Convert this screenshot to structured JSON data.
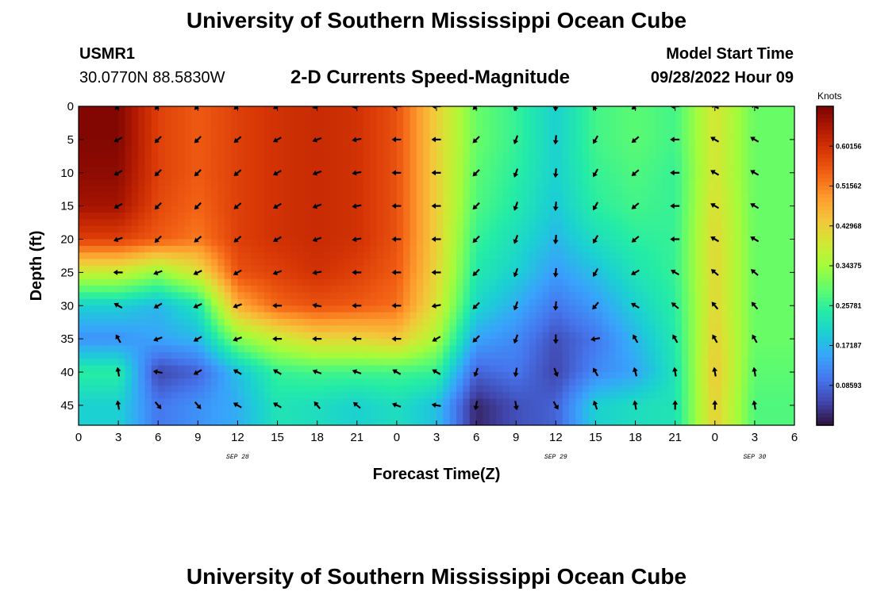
{
  "header": {
    "title": "University of Southern Mississippi Ocean Cube",
    "station_id": "USMR1",
    "coordinates": "30.0770N  88.5830W",
    "subtitle": "2-D Currents Speed-Magnitude",
    "model_label": "Model Start Time",
    "model_time": "09/28/2022 Hour 09"
  },
  "footer": {
    "title": "University of Southern Mississippi Ocean Cube"
  },
  "colors": {
    "colormap": [
      "#30123b",
      "#4145ab",
      "#4675ed",
      "#39a2fc",
      "#1bcfd4",
      "#24eca6",
      "#61fc6c",
      "#a4fc3b",
      "#d1e834",
      "#f3c63a",
      "#fe9b2d",
      "#f36315",
      "#d93806",
      "#b11901",
      "#7a0403"
    ],
    "arrow": "#000000"
  },
  "chart_data": {
    "type": "heatmap",
    "title": "2-D Currents Speed-Magnitude",
    "xlabel": "Forecast Time(Z)",
    "ylabel": "Depth (ft)",
    "colorbar_label": "Knots",
    "colorbar_ticks": [
      "0.60156",
      "0.51562",
      "0.42968",
      "0.34375",
      "0.25781",
      "0.17187",
      "0.08593"
    ],
    "colorbar_values": [
      0.60156,
      0.51562,
      0.42968,
      0.34375,
      0.25781,
      0.17187,
      0.08593
    ],
    "value_range": [
      0.0,
      0.6875
    ],
    "x_tick_labels": [
      "0",
      "3",
      "6",
      "9",
      "12",
      "15",
      "18",
      "21",
      "0",
      "3",
      "6",
      "9",
      "12",
      "15",
      "18",
      "21",
      "0",
      "3",
      "6"
    ],
    "x_range_hours": [
      0,
      54
    ],
    "date_labels": [
      {
        "label": "SEP 28",
        "hour": 12
      },
      {
        "label": "SEP 29",
        "hour": 36
      },
      {
        "label": "SEP 30",
        "hour": 51
      }
    ],
    "y_ticks": [
      0,
      5,
      10,
      15,
      20,
      25,
      30,
      35,
      40,
      45
    ],
    "y_range_ft": [
      0,
      48
    ],
    "depths_ft": [
      0,
      5,
      10,
      15,
      20,
      25,
      30,
      35,
      40,
      45
    ],
    "hours": [
      3,
      6,
      9,
      12,
      15,
      18,
      21,
      24,
      27,
      30,
      33,
      36,
      39,
      42,
      45,
      48,
      51
    ],
    "speed": [
      [
        0.68,
        0.58,
        0.55,
        0.58,
        0.6,
        0.61,
        0.6,
        0.56,
        0.43,
        0.3,
        0.26,
        0.2,
        0.27,
        0.29,
        0.27,
        0.4,
        0.3
      ],
      [
        0.68,
        0.58,
        0.55,
        0.58,
        0.6,
        0.61,
        0.6,
        0.56,
        0.43,
        0.3,
        0.26,
        0.2,
        0.27,
        0.29,
        0.27,
        0.4,
        0.3
      ],
      [
        0.67,
        0.58,
        0.55,
        0.58,
        0.6,
        0.61,
        0.6,
        0.56,
        0.43,
        0.29,
        0.25,
        0.2,
        0.26,
        0.28,
        0.26,
        0.4,
        0.3
      ],
      [
        0.65,
        0.57,
        0.54,
        0.58,
        0.6,
        0.61,
        0.6,
        0.56,
        0.43,
        0.28,
        0.24,
        0.19,
        0.25,
        0.27,
        0.26,
        0.41,
        0.3
      ],
      [
        0.58,
        0.55,
        0.52,
        0.58,
        0.6,
        0.61,
        0.6,
        0.56,
        0.43,
        0.26,
        0.22,
        0.17,
        0.22,
        0.25,
        0.26,
        0.42,
        0.3
      ],
      [
        0.38,
        0.33,
        0.4,
        0.56,
        0.58,
        0.6,
        0.58,
        0.55,
        0.42,
        0.24,
        0.2,
        0.14,
        0.18,
        0.23,
        0.26,
        0.42,
        0.3
      ],
      [
        0.2,
        0.17,
        0.23,
        0.47,
        0.54,
        0.56,
        0.55,
        0.53,
        0.4,
        0.21,
        0.16,
        0.1,
        0.14,
        0.2,
        0.25,
        0.42,
        0.3
      ],
      [
        0.13,
        0.15,
        0.17,
        0.32,
        0.38,
        0.42,
        0.42,
        0.44,
        0.35,
        0.15,
        0.12,
        0.06,
        0.1,
        0.17,
        0.24,
        0.43,
        0.3
      ],
      [
        0.25,
        0.05,
        0.08,
        0.18,
        0.26,
        0.27,
        0.27,
        0.27,
        0.26,
        0.08,
        0.1,
        0.05,
        0.12,
        0.15,
        0.23,
        0.44,
        0.29
      ],
      [
        0.2,
        0.1,
        0.13,
        0.16,
        0.23,
        0.22,
        0.2,
        0.22,
        0.18,
        0.02,
        0.06,
        0.08,
        0.2,
        0.22,
        0.23,
        0.43,
        0.28
      ]
    ],
    "direction_deg": [
      [
        225,
        225,
        225,
        230,
        240,
        250,
        260,
        270,
        270,
        225,
        200,
        185,
        210,
        230,
        270,
        300,
        300
      ],
      [
        240,
        225,
        225,
        230,
        240,
        250,
        260,
        270,
        270,
        225,
        200,
        185,
        210,
        230,
        270,
        300,
        300
      ],
      [
        240,
        225,
        225,
        230,
        240,
        250,
        260,
        270,
        270,
        225,
        200,
        185,
        210,
        230,
        270,
        300,
        300
      ],
      [
        240,
        225,
        225,
        230,
        240,
        250,
        260,
        270,
        270,
        225,
        200,
        185,
        210,
        230,
        270,
        300,
        300
      ],
      [
        250,
        225,
        230,
        230,
        240,
        250,
        260,
        270,
        270,
        225,
        200,
        185,
        210,
        230,
        270,
        300,
        300
      ],
      [
        270,
        250,
        245,
        240,
        250,
        260,
        270,
        270,
        270,
        225,
        200,
        185,
        210,
        240,
        300,
        310,
        310
      ],
      [
        300,
        240,
        245,
        250,
        270,
        280,
        270,
        270,
        260,
        225,
        200,
        185,
        220,
        300,
        310,
        320,
        320
      ],
      [
        330,
        250,
        240,
        250,
        270,
        270,
        270,
        270,
        240,
        225,
        200,
        180,
        260,
        330,
        330,
        330,
        330
      ],
      [
        350,
        280,
        240,
        300,
        300,
        290,
        290,
        300,
        300,
        200,
        190,
        160,
        330,
        345,
        350,
        350,
        350
      ],
      [
        350,
        140,
        140,
        300,
        300,
        320,
        310,
        290,
        280,
        190,
        170,
        150,
        340,
        350,
        360,
        360,
        350
      ]
    ]
  }
}
